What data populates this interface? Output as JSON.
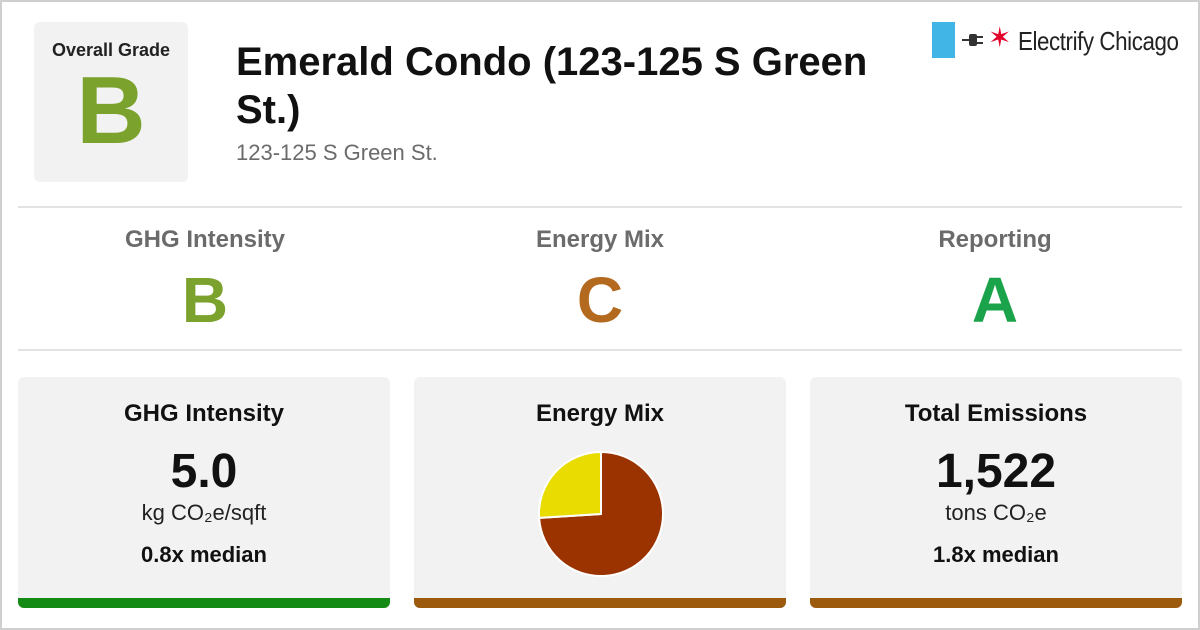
{
  "header": {
    "overall_grade_label": "Overall Grade",
    "overall_grade": "B",
    "overall_grade_color": "#7aa22c",
    "title": "Emerald Condo (123-125 S Green St.)",
    "address": "123-125 S Green St."
  },
  "brand": {
    "name": "Electrify Chicago",
    "flag_color": "#41b6e6",
    "star_color": "#e4002b",
    "icons": [
      "plug-icon",
      "star-icon"
    ]
  },
  "subgrades": [
    {
      "label": "GHG Intensity",
      "grade": "B",
      "color": "#7aa22c"
    },
    {
      "label": "Energy Mix",
      "grade": "C",
      "color": "#b3691e"
    },
    {
      "label": "Reporting",
      "grade": "A",
      "color": "#1aa34a"
    }
  ],
  "cards": {
    "ghg": {
      "title": "GHG Intensity",
      "value": "5.0",
      "unit": "kg CO₂e/sqft",
      "median": "0.8x median",
      "bar_color": "#138a13"
    },
    "energy_mix": {
      "title": "Energy Mix",
      "bar_color": "#9c5a0d"
    },
    "emissions": {
      "title": "Total Emissions",
      "value": "1,522",
      "unit": "tons CO₂e",
      "median": "1.8x median",
      "bar_color": "#9c5a0d"
    }
  },
  "chart_data": {
    "type": "pie",
    "title": "Energy Mix",
    "slices": [
      {
        "value": 74,
        "color": "#9a3300"
      },
      {
        "value": 26,
        "color": "#e8dc00"
      }
    ]
  }
}
